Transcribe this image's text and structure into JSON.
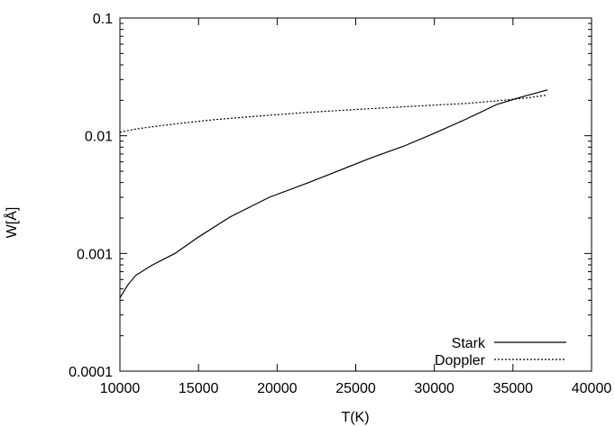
{
  "chart_data": {
    "type": "line",
    "title": "",
    "xlabel": "T(K)",
    "ylabel": "W[Å]",
    "xlim": [
      10000,
      40000
    ],
    "ylim": [
      0.0001,
      0.1
    ],
    "yscale": "log",
    "grid": false,
    "legend_position": "bottom-right",
    "x_ticks": [
      10000,
      15000,
      20000,
      25000,
      30000,
      35000,
      40000
    ],
    "x_tick_labels": [
      "10000",
      "15000",
      "20000",
      "25000",
      "30000",
      "35000",
      "40000"
    ],
    "y_ticks": [
      0.0001,
      0.001,
      0.01,
      0.1
    ],
    "y_tick_labels": [
      "0.0001",
      "0.001",
      "0.01",
      "0.1"
    ],
    "series": [
      {
        "name": "Stark",
        "style": "solid",
        "color": "#000000",
        "x": [
          10000,
          10500,
          11000,
          12000,
          13500,
          15000,
          17000,
          19500,
          22000,
          24000,
          26000,
          28000,
          30000,
          32000,
          34000,
          35000,
          36000,
          37200
        ],
        "y": [
          0.00042,
          0.00054,
          0.00065,
          0.00079,
          0.001,
          0.00138,
          0.00204,
          0.003,
          0.004,
          0.0051,
          0.0065,
          0.0081,
          0.0105,
          0.0138,
          0.0185,
          0.0203,
          0.0222,
          0.0245
        ]
      },
      {
        "name": "Doppler",
        "style": "dotted",
        "color": "#000000",
        "x": [
          10000,
          11000,
          12000,
          14000,
          16000,
          18000,
          20000,
          22000,
          24000,
          26000,
          28000,
          30000,
          32000,
          34000,
          36000,
          37200
        ],
        "y": [
          0.0107,
          0.0114,
          0.0119,
          0.0128,
          0.0137,
          0.0144,
          0.0151,
          0.0158,
          0.0164,
          0.017,
          0.0176,
          0.0182,
          0.0188,
          0.0198,
          0.021,
          0.0222
        ]
      }
    ]
  }
}
